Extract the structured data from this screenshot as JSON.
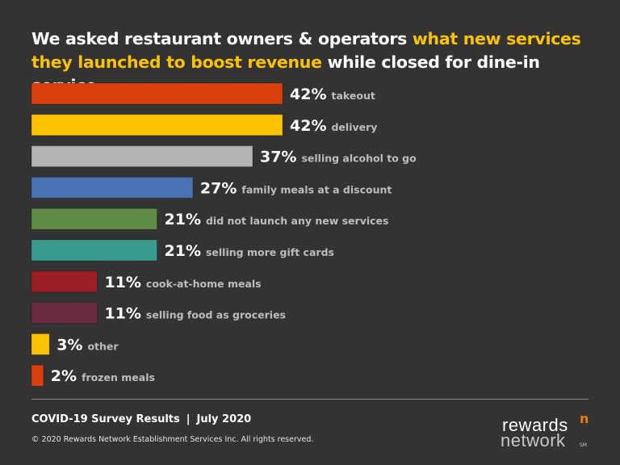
{
  "title": {
    "part1": "We asked restaurant owners & operators ",
    "highlight": "what new services they launched to boost revenue",
    "part2": " while closed for dine-in service."
  },
  "chart_data": {
    "type": "bar",
    "orientation": "horizontal",
    "categories": [
      "takeout",
      "delivery",
      "selling alcohol to go",
      "family meals at a discount",
      "did not launch any new services",
      "selling more gift cards",
      "cook-at-home meals",
      "selling food as groceries",
      "other",
      "frozen meals"
    ],
    "values": [
      42,
      42,
      37,
      27,
      21,
      21,
      11,
      11,
      3,
      2
    ],
    "value_labels": [
      "42%",
      "42%",
      "37%",
      "27%",
      "21%",
      "21%",
      "11%",
      "11%",
      "3%",
      "2%"
    ],
    "colors": [
      "#d9400e",
      "#fdc300",
      "#b3b3b3",
      "#4a73b5",
      "#5f8b45",
      "#3a9b91",
      "#9b1f24",
      "#6a2d40",
      "#fdc300",
      "#d9400e"
    ],
    "unit": "%",
    "xlim": [
      0,
      42
    ]
  },
  "footer": {
    "survey": "COVID-19 Survey Results",
    "separator": "|",
    "date": "July 2020",
    "copyright": "© 2020 Rewards Network Establishment Services Inc. All rights reserved."
  },
  "logo": {
    "line1": "rewards",
    "line2": "network",
    "sm": "SM",
    "mark": "n"
  }
}
